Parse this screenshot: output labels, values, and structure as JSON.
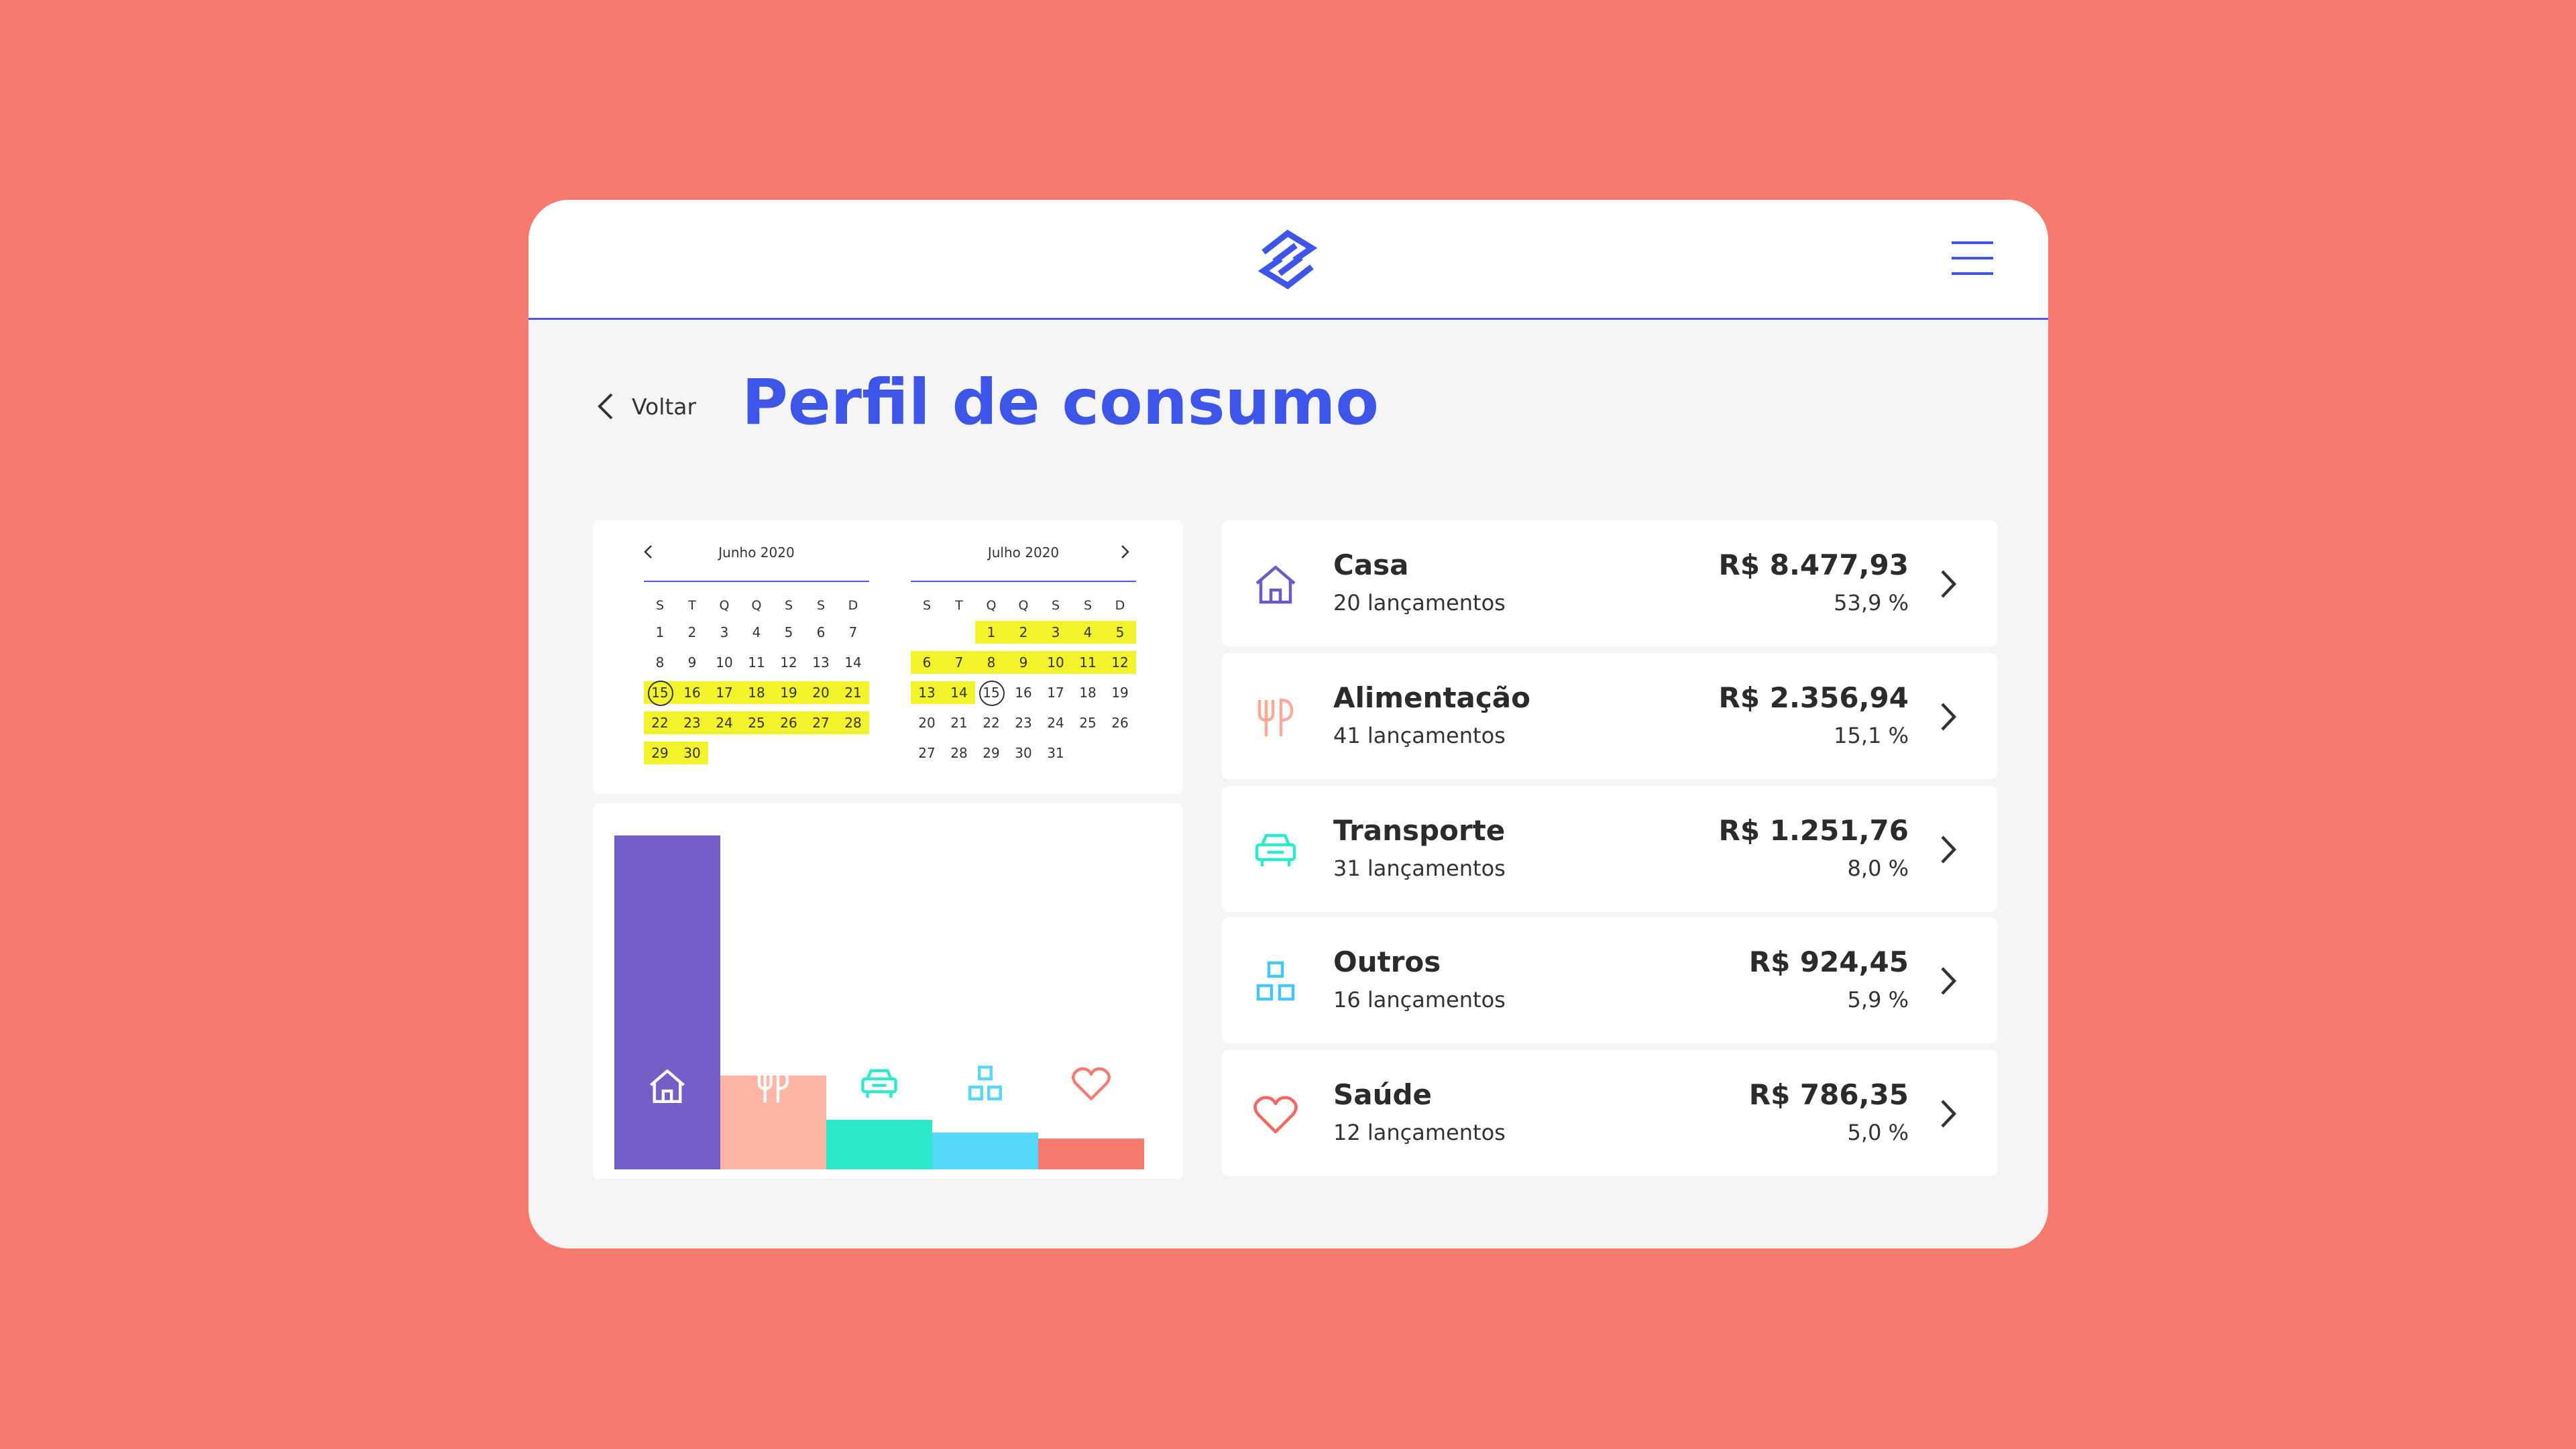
{
  "header": {
    "logo_icon": "bb-logo-icon",
    "menu_icon": "hamburger-menu-icon"
  },
  "page": {
    "back_label": "Voltar",
    "title": "Perfil de consumo"
  },
  "calendar": {
    "weekdays": [
      "S",
      "T",
      "Q",
      "Q",
      "S",
      "S",
      "D"
    ],
    "highlight_color": "#F3F32C",
    "months": [
      {
        "title": "Junho 2020",
        "weeks": [
          [
            "1",
            "2",
            "3",
            "4",
            "5",
            "6",
            "7"
          ],
          [
            "8",
            "9",
            "10",
            "11",
            "12",
            "13",
            "14"
          ],
          [
            "15",
            "16",
            "17",
            "18",
            "19",
            "20",
            "21"
          ],
          [
            "22",
            "23",
            "24",
            "25",
            "26",
            "27",
            "28"
          ],
          [
            "29",
            "30",
            "",
            "",
            "",
            "",
            ""
          ]
        ],
        "highlighted": [
          "15",
          "16",
          "17",
          "18",
          "19",
          "20",
          "21",
          "22",
          "23",
          "24",
          "25",
          "26",
          "27",
          "28",
          "29",
          "30"
        ],
        "today": "15"
      },
      {
        "title": "Julho 2020",
        "weeks": [
          [
            "",
            "",
            "1",
            "2",
            "3",
            "4",
            "5"
          ],
          [
            "6",
            "7",
            "8",
            "9",
            "10",
            "11",
            "12"
          ],
          [
            "13",
            "14",
            "15",
            "16",
            "17",
            "18",
            "19"
          ],
          [
            "20",
            "21",
            "22",
            "23",
            "24",
            "25",
            "26"
          ],
          [
            "27",
            "28",
            "29",
            "30",
            "31",
            "",
            ""
          ]
        ],
        "highlighted": [
          "1",
          "2",
          "3",
          "4",
          "5",
          "6",
          "7",
          "8",
          "9",
          "10",
          "11",
          "12",
          "13",
          "14"
        ],
        "today": "15"
      }
    ]
  },
  "chart_data": {
    "type": "bar",
    "categories": [
      "Casa",
      "Alimentação",
      "Transporte",
      "Outros",
      "Saúde"
    ],
    "values": [
      53.9,
      15.1,
      8.0,
      5.9,
      5.0
    ],
    "colors": [
      "#745FC8",
      "#FFB5A6",
      "#2EEACC",
      "#54D8FA",
      "#F87A6F"
    ],
    "icons": [
      "house-icon",
      "fork-knife-icon",
      "car-icon",
      "boxes-icon",
      "heart-icon"
    ],
    "ylim": [
      0,
      53.9
    ]
  },
  "categories": [
    {
      "name": "Casa",
      "count": "20 lançamentos",
      "amount": "R$ 8.477,93",
      "percent": "53,9 %",
      "icon": "house-icon",
      "color": "#6A5BC9"
    },
    {
      "name": "Alimentação",
      "count": "41 lançamentos",
      "amount": "R$ 2.356,94",
      "percent": "15,1 %",
      "icon": "fork-knife-icon",
      "color": "#FFA999"
    },
    {
      "name": "Transporte",
      "count": "31 lançamentos",
      "amount": "R$ 1.251,76",
      "percent": "8,0 %",
      "icon": "car-icon",
      "color": "#2EEACC"
    },
    {
      "name": "Outros",
      "count": "16 lançamentos",
      "amount": "R$ 924,45",
      "percent": "5,9 %",
      "icon": "boxes-icon",
      "color": "#46C7F5"
    },
    {
      "name": "Saúde",
      "count": "12 lançamentos",
      "amount": "R$ 786,35",
      "percent": "5,0 %",
      "icon": "heart-icon",
      "color": "#F5665D"
    }
  ]
}
